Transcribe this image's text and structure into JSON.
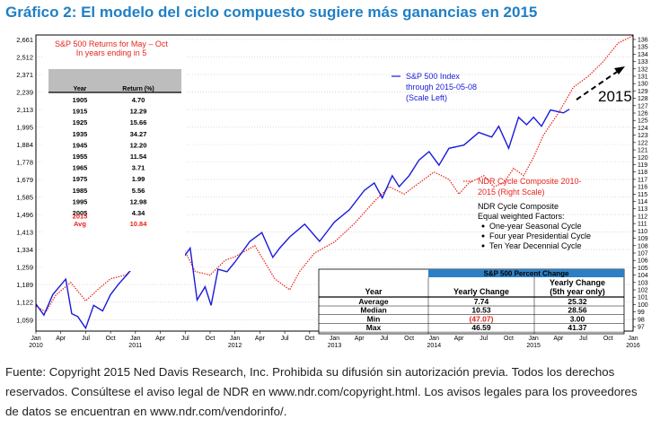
{
  "title": "Gráfico 2: El modelo del ciclo compuesto sugiere más ganancias en 2015",
  "source_text": "Fuente: Copyright 2015 Ned Davis Research, Inc. Prohibida su difusión sin autorización previa. Todos los derechos reservados. Consúltese el aviso legal de NDR en www.ndr.com/copyright.html. Los avisos legales para los proveedores de datos se encuentran en www.ndr.com/vendorinfo/.",
  "colors": {
    "sp500": "#1a1adb",
    "cycle": "#e8231b",
    "title": "#1f7fc4",
    "table_header": "#2c7fc4",
    "returns_header": "#bdbdbd"
  },
  "chart_data": {
    "type": "line",
    "left_axis": {
      "ticks": [
        1059,
        1122,
        1189,
        1259,
        1334,
        1413,
        1496,
        1585,
        1679,
        1778,
        1884,
        1995,
        2113,
        2239,
        2371,
        2512,
        2661
      ],
      "labels": [
        "1,059",
        "1,122",
        "1,189",
        "1,259",
        "1,334",
        "1,413",
        "1,496",
        "1,585",
        "1,679",
        "1,778",
        "1,884",
        "1,995",
        "2,113",
        "2,239",
        "2,371",
        "2,512",
        "2,661"
      ],
      "scale": "log",
      "range": [
        1020,
        2700
      ]
    },
    "right_axis": {
      "min": 97,
      "max": 136,
      "ticks": [
        97,
        98,
        99,
        100,
        101,
        102,
        103,
        104,
        105,
        106,
        107,
        108,
        109,
        110,
        111,
        112,
        113,
        114,
        115,
        116,
        117,
        118,
        119,
        120,
        121,
        122,
        123,
        124,
        125,
        126,
        127,
        128,
        129,
        130,
        131,
        132,
        133,
        134,
        135,
        136
      ]
    },
    "x_axis": {
      "start": 2010.0,
      "end": 2016.0,
      "year_labels": [
        {
          "x": 2010.0,
          "label": "2010"
        },
        {
          "x": 2011.0,
          "label": "2011"
        },
        {
          "x": 2012.0,
          "label": "2012"
        },
        {
          "x": 2013.0,
          "label": "2013"
        },
        {
          "x": 2014.0,
          "label": "2014"
        },
        {
          "x": 2015.0,
          "label": "2015"
        },
        {
          "x": 2016.0,
          "label": "2016"
        }
      ],
      "month_labels": [
        "Jan",
        "Apr",
        "Jul",
        "Oct"
      ]
    },
    "series": [
      {
        "name": "S&P 500 Index through 2015-05-08 (Scale Left)",
        "axis": "left",
        "points": [
          [
            2010.0,
            1115
          ],
          [
            2010.08,
            1075
          ],
          [
            2010.17,
            1150
          ],
          [
            2010.3,
            1210
          ],
          [
            2010.36,
            1080
          ],
          [
            2010.42,
            1070
          ],
          [
            2010.5,
            1030
          ],
          [
            2010.58,
            1110
          ],
          [
            2010.67,
            1090
          ],
          [
            2010.75,
            1150
          ],
          [
            2010.83,
            1190
          ],
          [
            2010.92,
            1230
          ],
          [
            2011.0,
            1270
          ],
          [
            2011.12,
            1320
          ],
          [
            2011.2,
            1300
          ],
          [
            2011.33,
            1360
          ],
          [
            2011.45,
            1280
          ],
          [
            2011.55,
            1340
          ],
          [
            2011.62,
            1130
          ],
          [
            2011.7,
            1180
          ],
          [
            2011.76,
            1110
          ],
          [
            2011.83,
            1250
          ],
          [
            2011.92,
            1240
          ],
          [
            2012.0,
            1280
          ],
          [
            2012.15,
            1370
          ],
          [
            2012.27,
            1410
          ],
          [
            2012.38,
            1300
          ],
          [
            2012.45,
            1340
          ],
          [
            2012.55,
            1390
          ],
          [
            2012.7,
            1450
          ],
          [
            2012.85,
            1370
          ],
          [
            2012.95,
            1430
          ],
          [
            2013.0,
            1460
          ],
          [
            2013.15,
            1520
          ],
          [
            2013.3,
            1620
          ],
          [
            2013.4,
            1660
          ],
          [
            2013.48,
            1580
          ],
          [
            2013.58,
            1700
          ],
          [
            2013.65,
            1640
          ],
          [
            2013.75,
            1700
          ],
          [
            2013.85,
            1790
          ],
          [
            2013.95,
            1840
          ],
          [
            2014.05,
            1760
          ],
          [
            2014.15,
            1860
          ],
          [
            2014.3,
            1880
          ],
          [
            2014.45,
            1960
          ],
          [
            2014.58,
            1930
          ],
          [
            2014.65,
            2000
          ],
          [
            2014.75,
            1860
          ],
          [
            2014.85,
            2060
          ],
          [
            2014.93,
            2010
          ],
          [
            2015.0,
            2060
          ],
          [
            2015.08,
            2000
          ],
          [
            2015.17,
            2110
          ],
          [
            2015.3,
            2090
          ],
          [
            2015.36,
            2115
          ]
        ]
      },
      {
        "name": "NDR Cycle Composite 2010-2015 (Right Scale)",
        "axis": "right",
        "points": [
          [
            2010.0,
            99.8
          ],
          [
            2010.1,
            99.0
          ],
          [
            2010.2,
            101.3
          ],
          [
            2010.35,
            103.0
          ],
          [
            2010.5,
            100.5
          ],
          [
            2010.62,
            102.0
          ],
          [
            2010.75,
            103.5
          ],
          [
            2010.9,
            104.0
          ],
          [
            2011.0,
            105.2
          ],
          [
            2011.2,
            108.0
          ],
          [
            2011.35,
            107.0
          ],
          [
            2011.45,
            108.5
          ],
          [
            2011.6,
            104.5
          ],
          [
            2011.75,
            104.0
          ],
          [
            2011.9,
            106.0
          ],
          [
            2012.0,
            106.5
          ],
          [
            2012.2,
            108.0
          ],
          [
            2012.4,
            103.5
          ],
          [
            2012.55,
            102.0
          ],
          [
            2012.65,
            104.5
          ],
          [
            2012.8,
            107.0
          ],
          [
            2013.0,
            108.5
          ],
          [
            2013.2,
            111.0
          ],
          [
            2013.4,
            114.0
          ],
          [
            2013.55,
            116.0
          ],
          [
            2013.7,
            115.0
          ],
          [
            2013.85,
            116.5
          ],
          [
            2014.0,
            118.0
          ],
          [
            2014.15,
            117.0
          ],
          [
            2014.25,
            115.0
          ],
          [
            2014.35,
            116.5
          ],
          [
            2014.5,
            117.5
          ],
          [
            2014.6,
            116.0
          ],
          [
            2014.7,
            116.5
          ],
          [
            2014.8,
            118.5
          ],
          [
            2014.9,
            117.5
          ],
          [
            2015.0,
            120.0
          ],
          [
            2015.1,
            123.0
          ],
          [
            2015.25,
            126.0
          ],
          [
            2015.4,
            129.5
          ],
          [
            2015.55,
            131.0
          ],
          [
            2015.7,
            133.0
          ],
          [
            2015.85,
            135.5
          ],
          [
            2016.0,
            136.5
          ]
        ]
      }
    ],
    "series_labels": {
      "sp500": [
        "S&P 500 Index",
        "through 2015-05-08",
        "(Scale Left)"
      ],
      "cycle": [
        "NDR Cycle Composite 2010-",
        "2015 (Right Scale)"
      ]
    },
    "factors": {
      "heading": [
        "NDR Cycle Composite",
        "Equal weighted Factors:"
      ],
      "items": [
        "One-year Seasonal Cycle",
        "Four year Presidential Cycle",
        "Ten Year Decennial Cycle"
      ]
    },
    "annotation_2015": "2015",
    "returns_table": {
      "title": [
        "S&P 500 Returns for May – Oct",
        "In years ending in 5"
      ],
      "headers": [
        "Year",
        "Return (%)"
      ],
      "rows": [
        [
          "1905",
          "4.70"
        ],
        [
          "1915",
          "12.29"
        ],
        [
          "1925",
          "15.66"
        ],
        [
          "1935",
          "34.27"
        ],
        [
          "1945",
          "12.20"
        ],
        [
          "1955",
          "11.54"
        ],
        [
          "1965",
          "3.71"
        ],
        [
          "1975",
          "1.99"
        ],
        [
          "1985",
          "5.56"
        ],
        [
          "1995",
          "12.98"
        ],
        [
          "2005",
          "4.34"
        ]
      ],
      "row_2015": [
        "2015",
        ""
      ],
      "avg": [
        "Avg",
        "10.84"
      ]
    },
    "pct_table": {
      "title": "S&P 500 Percent Change",
      "headers": [
        "Year",
        "Yearly Change",
        "Yearly Change",
        "(5th year only)"
      ],
      "rows": [
        [
          "Average",
          "7.74",
          "25.32"
        ],
        [
          "Median",
          "10.53",
          "28.56"
        ],
        [
          "Min",
          "(47.07)",
          "3.00"
        ],
        [
          "Max",
          "46.59",
          "41.37"
        ]
      ]
    }
  }
}
